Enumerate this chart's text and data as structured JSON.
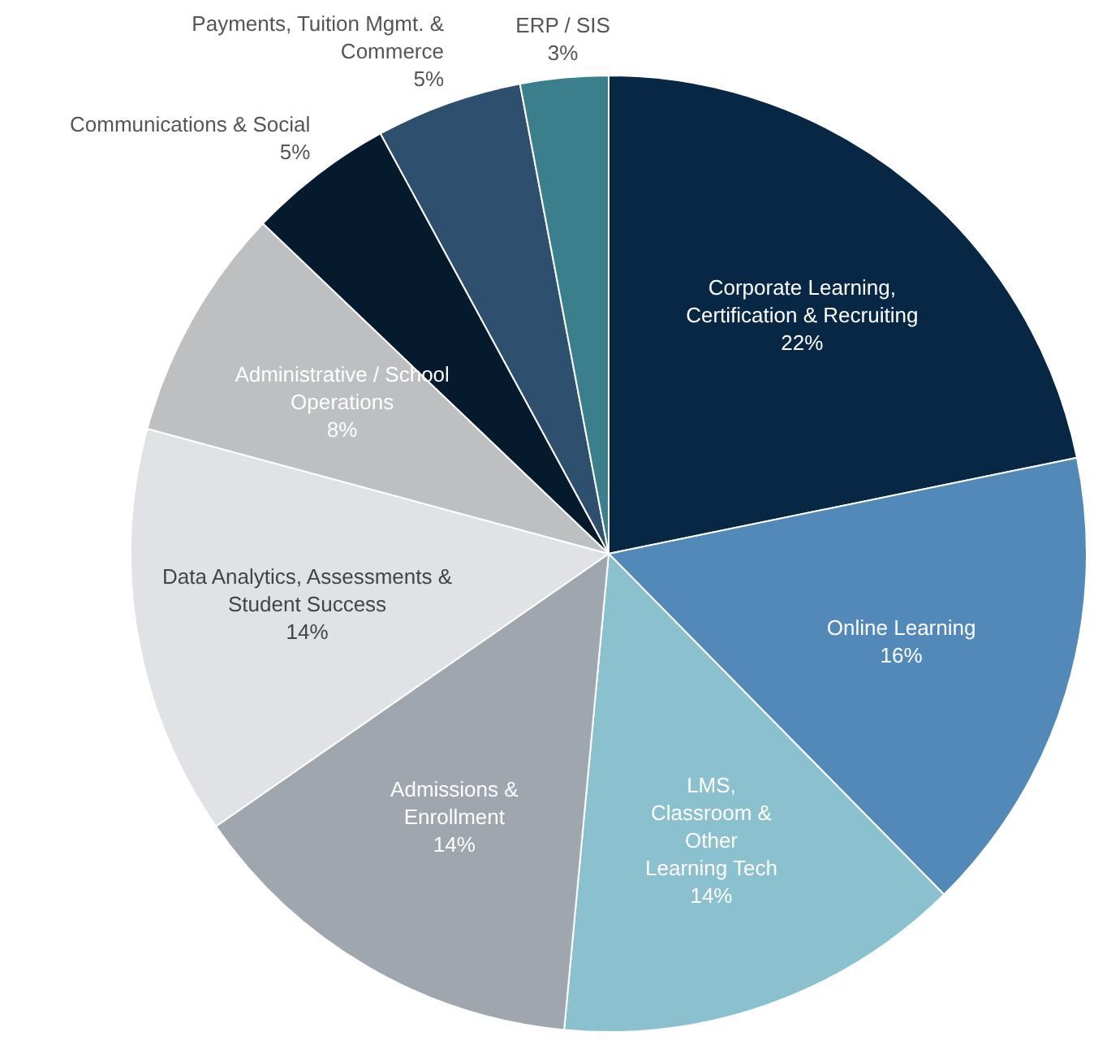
{
  "chart_data": {
    "type": "pie",
    "categories": [
      "Corporate Learning,\nCertification & Recruiting",
      "Online Learning",
      "LMS,\nClassroom &\nOther\nLearning Tech",
      "Admissions &\nEnrollment",
      "Data Analytics, Assessments &\nStudent Success",
      "Administrative / School\nOperations",
      "Communications & Social",
      "Payments, Tuition Mgmt. &\nCommerce",
      "ERP / SIS"
    ],
    "values": [
      22,
      16,
      14,
      14,
      14,
      8,
      5,
      5,
      3
    ],
    "value_labels": [
      "22%",
      "16%",
      "14%",
      "14%",
      "14%",
      "8%",
      "5%",
      "5%",
      "3%"
    ],
    "colors": [
      "#072745",
      "#5389b8",
      "#8bc1cf",
      "#a0a6ae",
      "#e0e2e5",
      "#bebfc1",
      "#061a2e",
      "#2f4f6e",
      "#3b7f8c"
    ],
    "legend": false
  }
}
